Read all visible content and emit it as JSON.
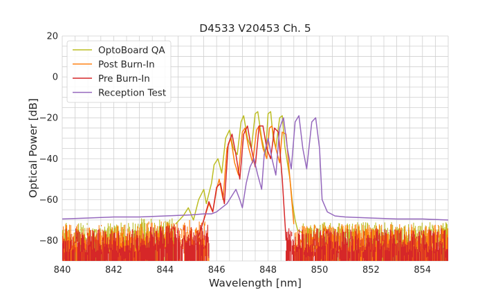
{
  "chart_data": {
    "type": "line",
    "title": "D4533 V20453 Ch. 5",
    "xlabel": "Wavelength [nm]",
    "ylabel": "Optical Power [dB]",
    "xlim": [
      840,
      855
    ],
    "ylim": [
      -90,
      20
    ],
    "x_ticks": [
      840,
      842,
      844,
      846,
      848,
      850,
      852,
      854
    ],
    "x_tick_labels": [
      "840",
      "842",
      "844",
      "846",
      "848",
      "850",
      "852",
      "854"
    ],
    "y_ticks": [
      20,
      0,
      -20,
      -40,
      -60,
      -80
    ],
    "y_tick_labels": [
      "20",
      "0",
      "−20",
      "−40",
      "−60",
      "−80"
    ],
    "grid": true,
    "legend_position": "top-left",
    "series": [
      {
        "name": "OptoBoard QA",
        "color": "#bcbd22",
        "noise_band": [
          840,
          844.4
        ],
        "noise_band_right": [
          849.3,
          855
        ],
        "x": [
          844.4,
          844.7,
          844.9,
          845.0,
          845.1,
          845.3,
          845.5,
          845.6,
          845.8,
          845.9,
          846.05,
          846.2,
          846.35,
          846.5,
          846.65,
          846.8,
          846.95,
          847.05,
          847.2,
          847.35,
          847.5,
          847.6,
          847.75,
          847.9,
          848.0,
          848.1,
          848.2,
          848.3,
          848.45,
          848.55,
          848.65,
          848.75,
          848.85,
          848.95,
          849.05,
          849.15,
          849.3
        ],
        "y": [
          -72,
          -68,
          -64,
          -67,
          -70,
          -60,
          -55,
          -62,
          -52,
          -43,
          -40,
          -47,
          -30,
          -26,
          -35,
          -38,
          -22,
          -19,
          -30,
          -35,
          -18,
          -17,
          -30,
          -38,
          -18,
          -17,
          -30,
          -35,
          -20,
          -19,
          -34,
          -42,
          -50,
          -62,
          -70,
          -75,
          -76
        ]
      },
      {
        "name": "Post Burn-In",
        "color": "#ff7f0e",
        "noise_band": [
          840,
          845.7
        ],
        "noise_band_right": [
          849.0,
          855
        ],
        "x": [
          845.3,
          845.5,
          845.7,
          845.85,
          846.0,
          846.1,
          846.25,
          846.4,
          846.55,
          846.7,
          846.85,
          847.0,
          847.1,
          847.25,
          847.4,
          847.55,
          847.65,
          847.8,
          847.95,
          848.05,
          848.15,
          848.3,
          848.45,
          848.55,
          848.7,
          848.85,
          849.0
        ],
        "y": [
          -77,
          -70,
          -62,
          -66,
          -55,
          -50,
          -60,
          -35,
          -30,
          -42,
          -48,
          -27,
          -25,
          -35,
          -42,
          -26,
          -24,
          -35,
          -40,
          -25,
          -24,
          -35,
          -42,
          -27,
          -28,
          -50,
          -72
        ]
      },
      {
        "name": "Pre Burn-In",
        "color": "#d62728",
        "noise_band": [
          840,
          845.7
        ],
        "noise_band_right": [
          848.7,
          855
        ],
        "x": [
          845.3,
          845.5,
          845.7,
          845.85,
          846.0,
          846.15,
          846.3,
          846.45,
          846.6,
          846.75,
          846.9,
          847.05,
          847.2,
          847.35,
          847.5,
          847.65,
          847.8,
          847.95,
          848.1,
          848.25,
          848.4,
          848.55,
          848.7
        ],
        "y": [
          -78,
          -70,
          -61,
          -66,
          -54,
          -52,
          -62,
          -33,
          -28,
          -38,
          -50,
          -28,
          -24,
          -35,
          -44,
          -24,
          -24,
          -35,
          -40,
          -25,
          -27,
          -50,
          -80
        ]
      },
      {
        "name": "Reception Test",
        "color": "#9467bd",
        "x": [
          840.0,
          841.0,
          842.0,
          843.0,
          844.0,
          845.0,
          845.5,
          845.8,
          846.0,
          846.2,
          846.4,
          846.6,
          846.75,
          846.9,
          847.0,
          847.15,
          847.3,
          847.45,
          847.6,
          847.75,
          847.85,
          848.0,
          848.15,
          848.3,
          848.45,
          848.6,
          848.75,
          848.9,
          849.05,
          849.2,
          849.35,
          849.5,
          849.7,
          849.85,
          850.0,
          850.1,
          850.3,
          850.6,
          851.0,
          852.0,
          853.0,
          854.0,
          855.0
        ],
        "y": [
          -69.5,
          -69,
          -68.5,
          -68.5,
          -68,
          -67.5,
          -67,
          -67,
          -66,
          -64,
          -62,
          -58,
          -55,
          -60,
          -64,
          -52,
          -44,
          -40,
          -48,
          -55,
          -38,
          -30,
          -40,
          -48,
          -25,
          -20,
          -35,
          -45,
          -22,
          -19,
          -35,
          -45,
          -22,
          -20,
          -35,
          -60,
          -66,
          -68,
          -68.5,
          -69,
          -69.5,
          -69.5,
          -70
        ]
      }
    ]
  }
}
